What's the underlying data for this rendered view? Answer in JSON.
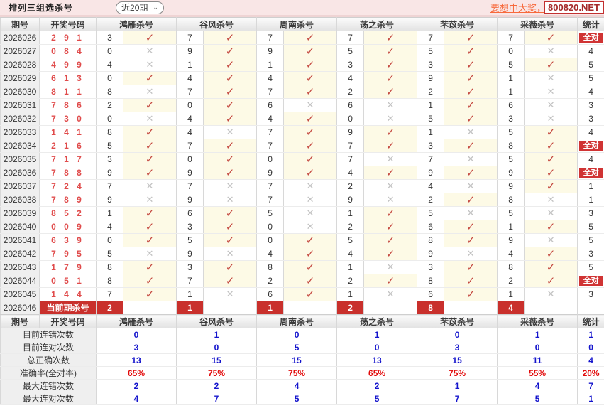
{
  "header": {
    "title": "排列三组选杀号",
    "period_select": "近20期",
    "promo_link": "要想中大奖，天",
    "promo_box": "800820.NET"
  },
  "icons": {
    "check": "✓",
    "cross": "✕",
    "chevron_down": "⌄"
  },
  "colors": {
    "accent_red": "#C9302C",
    "check_red": "#C4473F",
    "cross_gray": "#C2C2C2",
    "correct_bg": "#FDFAE6",
    "stat_blue": "#1414CC",
    "stat_red": "#E20A0A",
    "topbar_pink": "#F9E6E6"
  },
  "table": {
    "columns": [
      "期号",
      "开奖号码",
      "鸿雁杀号",
      "谷风杀号",
      "周南杀号",
      "荡之杀号",
      "芣苡杀号",
      "采薇杀号",
      "统计"
    ],
    "rows": [
      {
        "period": "2026026",
        "win": "2 9 1",
        "kills": [
          [
            "3",
            1
          ],
          [
            "7",
            1
          ],
          [
            "7",
            1
          ],
          [
            "7",
            1
          ],
          [
            "7",
            1
          ],
          [
            "7",
            1
          ]
        ],
        "stat": "全对"
      },
      {
        "period": "2026027",
        "win": "0 8 4",
        "kills": [
          [
            "0",
            0
          ],
          [
            "9",
            1
          ],
          [
            "9",
            1
          ],
          [
            "5",
            1
          ],
          [
            "5",
            1
          ],
          [
            "0",
            0
          ]
        ],
        "stat": "4"
      },
      {
        "period": "2026028",
        "win": "4 9 9",
        "kills": [
          [
            "4",
            0
          ],
          [
            "1",
            1
          ],
          [
            "1",
            1
          ],
          [
            "3",
            1
          ],
          [
            "3",
            1
          ],
          [
            "5",
            1
          ]
        ],
        "stat": "5"
      },
      {
        "period": "2026029",
        "win": "6 1 3",
        "kills": [
          [
            "0",
            1
          ],
          [
            "4",
            1
          ],
          [
            "4",
            1
          ],
          [
            "4",
            1
          ],
          [
            "9",
            1
          ],
          [
            "1",
            0
          ]
        ],
        "stat": "5"
      },
      {
        "period": "2026030",
        "win": "8 1 1",
        "kills": [
          [
            "8",
            0
          ],
          [
            "7",
            1
          ],
          [
            "7",
            1
          ],
          [
            "2",
            1
          ],
          [
            "2",
            1
          ],
          [
            "1",
            0
          ]
        ],
        "stat": "4"
      },
      {
        "period": "2026031",
        "win": "7 8 6",
        "kills": [
          [
            "2",
            1
          ],
          [
            "0",
            1
          ],
          [
            "6",
            0
          ],
          [
            "6",
            0
          ],
          [
            "1",
            1
          ],
          [
            "6",
            0
          ]
        ],
        "stat": "3"
      },
      {
        "period": "2026032",
        "win": "7 3 0",
        "kills": [
          [
            "0",
            0
          ],
          [
            "4",
            1
          ],
          [
            "4",
            1
          ],
          [
            "0",
            0
          ],
          [
            "5",
            1
          ],
          [
            "3",
            0
          ]
        ],
        "stat": "3"
      },
      {
        "period": "2026033",
        "win": "1 4 1",
        "kills": [
          [
            "8",
            1
          ],
          [
            "4",
            0
          ],
          [
            "7",
            1
          ],
          [
            "9",
            1
          ],
          [
            "1",
            0
          ],
          [
            "5",
            1
          ]
        ],
        "stat": "4"
      },
      {
        "period": "2026034",
        "win": "2 1 6",
        "kills": [
          [
            "5",
            1
          ],
          [
            "7",
            1
          ],
          [
            "7",
            1
          ],
          [
            "7",
            1
          ],
          [
            "3",
            1
          ],
          [
            "8",
            1
          ]
        ],
        "stat": "全对"
      },
      {
        "period": "2026035",
        "win": "7 1 7",
        "kills": [
          [
            "3",
            1
          ],
          [
            "0",
            1
          ],
          [
            "0",
            1
          ],
          [
            "7",
            0
          ],
          [
            "7",
            0
          ],
          [
            "5",
            1
          ]
        ],
        "stat": "4"
      },
      {
        "period": "2026036",
        "win": "7 8 8",
        "kills": [
          [
            "9",
            1
          ],
          [
            "9",
            1
          ],
          [
            "9",
            1
          ],
          [
            "4",
            1
          ],
          [
            "9",
            1
          ],
          [
            "9",
            1
          ]
        ],
        "stat": "全对"
      },
      {
        "period": "2026037",
        "win": "7 2 4",
        "kills": [
          [
            "7",
            0
          ],
          [
            "7",
            0
          ],
          [
            "7",
            0
          ],
          [
            "2",
            0
          ],
          [
            "4",
            0
          ],
          [
            "9",
            1
          ]
        ],
        "stat": "1"
      },
      {
        "period": "2026038",
        "win": "7 8 9",
        "kills": [
          [
            "9",
            0
          ],
          [
            "9",
            0
          ],
          [
            "7",
            0
          ],
          [
            "9",
            0
          ],
          [
            "2",
            1
          ],
          [
            "8",
            0
          ]
        ],
        "stat": "1"
      },
      {
        "period": "2026039",
        "win": "8 5 2",
        "kills": [
          [
            "1",
            1
          ],
          [
            "6",
            1
          ],
          [
            "5",
            0
          ],
          [
            "1",
            1
          ],
          [
            "5",
            0
          ],
          [
            "5",
            0
          ]
        ],
        "stat": "3"
      },
      {
        "period": "2026040",
        "win": "0 0 9",
        "kills": [
          [
            "4",
            1
          ],
          [
            "3",
            1
          ],
          [
            "0",
            0
          ],
          [
            "2",
            1
          ],
          [
            "6",
            1
          ],
          [
            "1",
            1
          ]
        ],
        "stat": "5"
      },
      {
        "period": "2026041",
        "win": "6 3 9",
        "kills": [
          [
            "0",
            1
          ],
          [
            "5",
            1
          ],
          [
            "0",
            1
          ],
          [
            "5",
            1
          ],
          [
            "8",
            1
          ],
          [
            "9",
            0
          ]
        ],
        "stat": "5"
      },
      {
        "period": "2026042",
        "win": "7 9 5",
        "kills": [
          [
            "5",
            0
          ],
          [
            "9",
            0
          ],
          [
            "4",
            1
          ],
          [
            "4",
            1
          ],
          [
            "9",
            0
          ],
          [
            "4",
            1
          ]
        ],
        "stat": "3"
      },
      {
        "period": "2026043",
        "win": "1 7 9",
        "kills": [
          [
            "8",
            1
          ],
          [
            "3",
            1
          ],
          [
            "8",
            1
          ],
          [
            "1",
            0
          ],
          [
            "3",
            1
          ],
          [
            "8",
            1
          ]
        ],
        "stat": "5"
      },
      {
        "period": "2026044",
        "win": "0 5 1",
        "kills": [
          [
            "8",
            1
          ],
          [
            "7",
            1
          ],
          [
            "2",
            1
          ],
          [
            "2",
            1
          ],
          [
            "8",
            1
          ],
          [
            "2",
            1
          ]
        ],
        "stat": "全对"
      },
      {
        "period": "2026045",
        "win": "1 4 4",
        "kills": [
          [
            "7",
            1
          ],
          [
            "1",
            0
          ],
          [
            "6",
            1
          ],
          [
            "1",
            0
          ],
          [
            "6",
            1
          ],
          [
            "1",
            0
          ]
        ],
        "stat": "3"
      }
    ],
    "current_row": {
      "period": "2026046",
      "label": "当前期杀号",
      "kills": [
        "2",
        "1",
        "1",
        "2",
        "8",
        "4"
      ],
      "stat": ""
    }
  },
  "stats": {
    "columns": [
      "期号",
      "开奖号码",
      "鸿雁杀号",
      "谷风杀号",
      "周南杀号",
      "荡之杀号",
      "芣苡杀号",
      "采薇杀号",
      "统计"
    ],
    "rows": [
      {
        "label": "目前连错次数",
        "type": "blue",
        "values": [
          "0",
          "1",
          "0",
          "1",
          "0",
          "1",
          "1"
        ]
      },
      {
        "label": "目前连对次数",
        "type": "blue",
        "values": [
          "3",
          "0",
          "5",
          "0",
          "3",
          "0",
          "0"
        ]
      },
      {
        "label": "总正确次数",
        "type": "blue",
        "values": [
          "13",
          "15",
          "15",
          "13",
          "15",
          "11",
          "4"
        ]
      },
      {
        "label": "准确率(全对率)",
        "type": "red",
        "values": [
          "65%",
          "75%",
          "75%",
          "65%",
          "75%",
          "55%",
          "20%"
        ]
      },
      {
        "label": "最大连错次数",
        "type": "blue",
        "values": [
          "2",
          "2",
          "4",
          "2",
          "1",
          "4",
          "7"
        ]
      },
      {
        "label": "最大连对次数",
        "type": "blue",
        "values": [
          "4",
          "7",
          "5",
          "5",
          "7",
          "5",
          "1"
        ]
      }
    ]
  }
}
